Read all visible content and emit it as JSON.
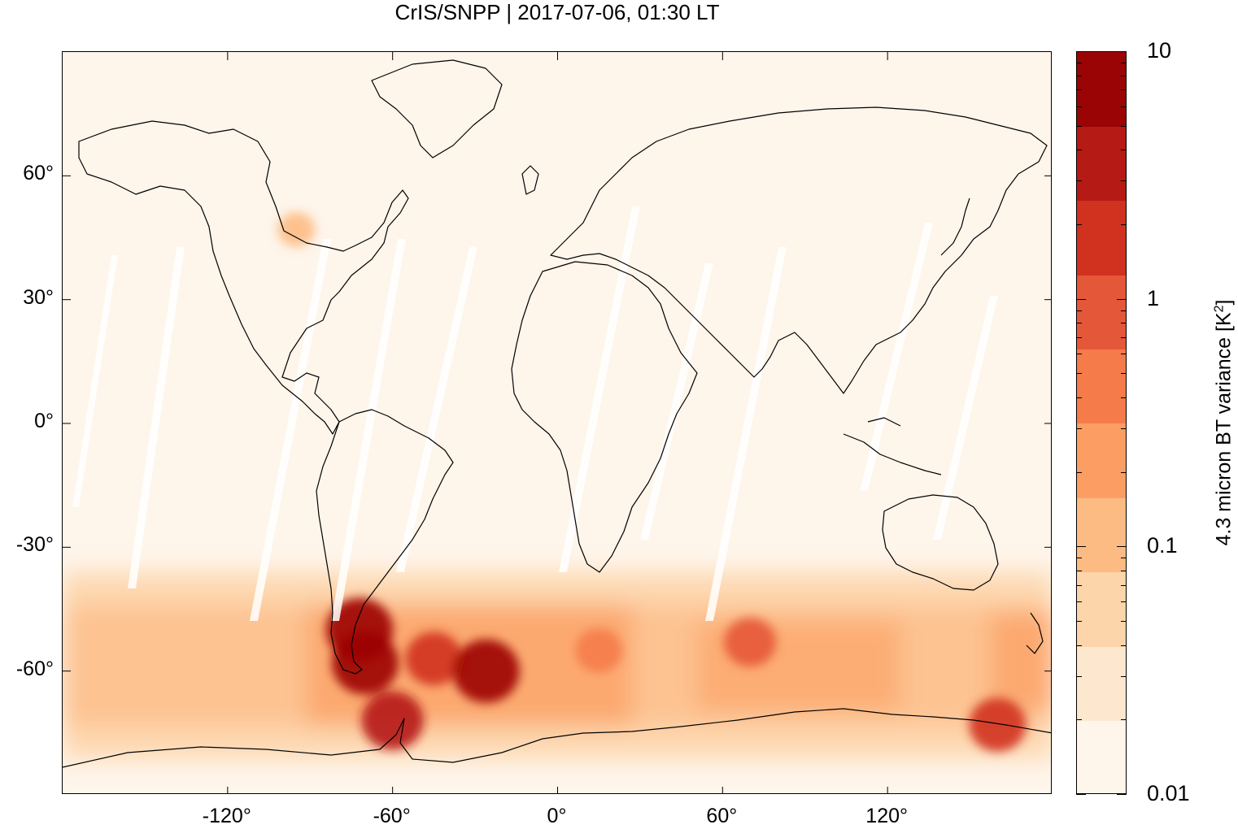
{
  "title": "CrIS/SNPP | 2017-07-06, 01:30 LT",
  "map": {
    "projection": "plate-carree",
    "lon_range": [
      -180,
      180
    ],
    "lat_range": [
      -90,
      90
    ],
    "y_ticks": [
      {
        "value": 60,
        "label": "60°"
      },
      {
        "value": 30,
        "label": "30°"
      },
      {
        "value": 0,
        "label": "0°"
      },
      {
        "value": -30,
        "label": "-30°"
      },
      {
        "value": -60,
        "label": "-60°"
      }
    ],
    "x_ticks": [
      {
        "value": -120,
        "label": "-120°"
      },
      {
        "value": -60,
        "label": "-60°"
      },
      {
        "value": 0,
        "label": "0°"
      },
      {
        "value": 60,
        "label": "60°"
      },
      {
        "value": 120,
        "label": "120°"
      }
    ],
    "hotspots": [
      {
        "lon": -72,
        "lat": -50,
        "level": 9
      },
      {
        "lon": -70,
        "lat": -58,
        "level": 9
      },
      {
        "lon": -45,
        "lat": -57,
        "level": 7
      },
      {
        "lon": -26,
        "lat": -60,
        "level": 9
      },
      {
        "lon": -60,
        "lat": -72,
        "level": 8
      },
      {
        "lon": 70,
        "lat": -53,
        "level": 6
      },
      {
        "lon": 160,
        "lat": -73,
        "level": 7
      },
      {
        "lon": -95,
        "lat": 47,
        "level": 3
      },
      {
        "lon": 15,
        "lat": -55,
        "level": 5
      }
    ]
  },
  "colorbar": {
    "label": "4.3 micron BT variance [K",
    "label_sup": "2",
    "label_close": "]",
    "scale": "log",
    "range": [
      0.01,
      10
    ],
    "tick_labels": [
      {
        "value": 10,
        "label": "10"
      },
      {
        "value": 1,
        "label": "1"
      },
      {
        "value": 0.1,
        "label": "0.1"
      },
      {
        "value": 0.01,
        "label": "0.01"
      }
    ],
    "colors": [
      "#fef5eb",
      "#fde8cf",
      "#fdd5ab",
      "#fdbb84",
      "#fc9e63",
      "#f57b4a",
      "#e55739",
      "#d0321f",
      "#b51a14",
      "#9b0404"
    ]
  }
}
